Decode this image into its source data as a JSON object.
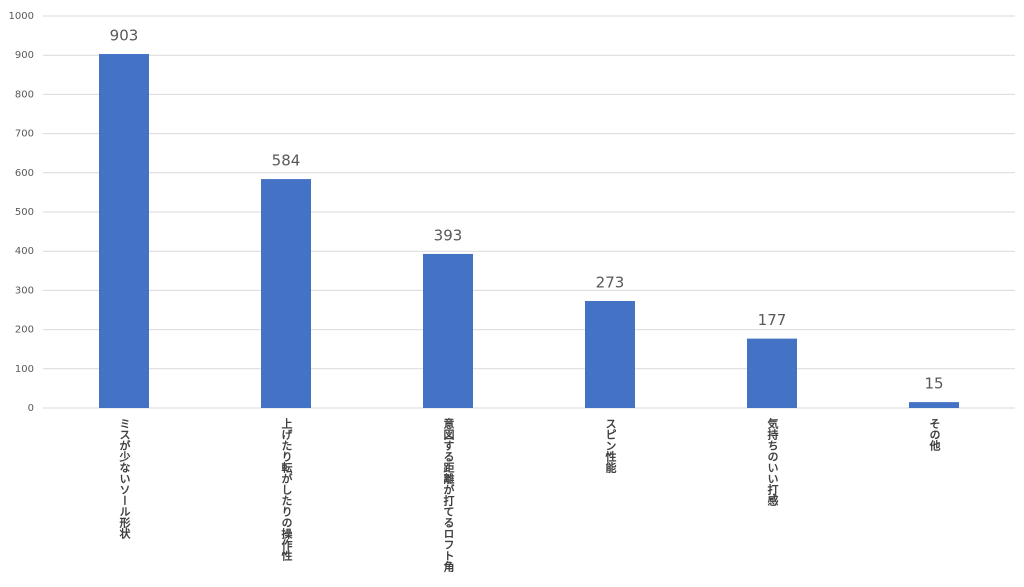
{
  "chart_data": {
    "type": "bar",
    "categories": [
      "ミスが少ないソール形状",
      "上げたり転がしたりの操作性",
      "意図する距離が打てるロフト角",
      "スピン性能",
      "気持ちのいい打感",
      "その他"
    ],
    "values": [
      903,
      584,
      393,
      273,
      177,
      15
    ],
    "color": "#4472c4",
    "ylim": [
      0,
      1000
    ],
    "yticks": [
      0,
      100,
      200,
      300,
      400,
      500,
      600,
      700,
      800,
      900,
      1000
    ],
    "grid": true
  }
}
